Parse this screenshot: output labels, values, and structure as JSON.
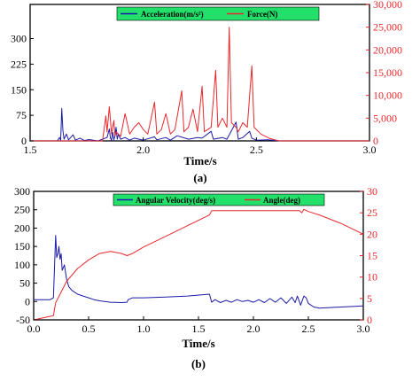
{
  "chart_data": [
    {
      "type": "line",
      "caption": "(a)",
      "xlabel": "Time/s",
      "xlim": [
        1.5,
        3.0
      ],
      "xticks": [
        "1.5",
        "2.0",
        "2.5",
        "3.0"
      ],
      "ylim_left": [
        0,
        400
      ],
      "yticks_left": [
        "0",
        "75",
        "150",
        "225",
        "300"
      ],
      "ylim_right": [
        0,
        30000
      ],
      "yticks_right": [
        "0",
        "5,000",
        "10,000",
        "15,000",
        "20,000",
        "25,000",
        "30,000"
      ],
      "legend_position": "top-center",
      "series": [
        {
          "name": "Acceleration(m/s²)",
          "axis": "left",
          "color": "#1a1aa8",
          "points": [
            [
              1.5,
              0
            ],
            [
              1.62,
              0
            ],
            [
              1.63,
              10
            ],
            [
              1.635,
              2
            ],
            [
              1.64,
              95
            ],
            [
              1.645,
              30
            ],
            [
              1.65,
              5
            ],
            [
              1.66,
              20
            ],
            [
              1.67,
              3
            ],
            [
              1.69,
              18
            ],
            [
              1.7,
              2
            ],
            [
              1.72,
              8
            ],
            [
              1.74,
              1
            ],
            [
              1.76,
              4
            ],
            [
              1.8,
              0
            ],
            [
              1.82,
              5
            ],
            [
              1.84,
              10
            ],
            [
              1.85,
              35
            ],
            [
              1.855,
              8
            ],
            [
              1.86,
              2
            ],
            [
              1.865,
              25
            ],
            [
              1.87,
              3
            ],
            [
              1.875,
              15
            ],
            [
              1.88,
              40
            ],
            [
              1.885,
              5
            ],
            [
              1.89,
              20
            ],
            [
              1.9,
              5
            ],
            [
              1.92,
              10
            ],
            [
              1.94,
              2
            ],
            [
              1.96,
              8
            ],
            [
              2.0,
              2
            ],
            [
              2.05,
              12
            ],
            [
              2.06,
              3
            ],
            [
              2.1,
              10
            ],
            [
              2.12,
              2
            ],
            [
              2.15,
              15
            ],
            [
              2.2,
              5
            ],
            [
              2.24,
              10
            ],
            [
              2.26,
              8
            ],
            [
              2.3,
              28
            ],
            [
              2.31,
              5
            ],
            [
              2.35,
              10
            ],
            [
              2.37,
              5
            ],
            [
              2.41,
              55
            ],
            [
              2.42,
              5
            ],
            [
              2.44,
              10
            ],
            [
              2.47,
              28
            ],
            [
              2.48,
              8
            ],
            [
              2.5,
              2
            ],
            [
              2.55,
              3
            ],
            [
              2.6,
              0
            ],
            [
              3.0,
              0
            ]
          ]
        },
        {
          "name": "Force(N)",
          "axis": "right",
          "color": "#e8282c",
          "points": [
            [
              1.5,
              0
            ],
            [
              1.82,
              0
            ],
            [
              1.835,
              5500
            ],
            [
              1.84,
              2000
            ],
            [
              1.85,
              7500
            ],
            [
              1.86,
              1500
            ],
            [
              1.87,
              4500
            ],
            [
              1.875,
              1000
            ],
            [
              1.88,
              2000
            ],
            [
              1.9,
              1000
            ],
            [
              1.92,
              6000
            ],
            [
              1.94,
              1500
            ],
            [
              1.96,
              3000
            ],
            [
              1.98,
              4000
            ],
            [
              2.0,
              2500
            ],
            [
              2.02,
              1500
            ],
            [
              2.05,
              8500
            ],
            [
              2.06,
              1500
            ],
            [
              2.08,
              2500
            ],
            [
              2.1,
              6000
            ],
            [
              2.12,
              1500
            ],
            [
              2.14,
              2500
            ],
            [
              2.17,
              11000
            ],
            [
              2.18,
              2000
            ],
            [
              2.2,
              3000
            ],
            [
              2.22,
              7000
            ],
            [
              2.24,
              2000
            ],
            [
              2.26,
              12000
            ],
            [
              2.27,
              2000
            ],
            [
              2.3,
              3000
            ],
            [
              2.32,
              15500
            ],
            [
              2.33,
              3000
            ],
            [
              2.35,
              5000
            ],
            [
              2.37,
              3000
            ],
            [
              2.38,
              25000
            ],
            [
              2.39,
              4000
            ],
            [
              2.41,
              3000
            ],
            [
              2.42,
              2000
            ],
            [
              2.44,
              4000
            ],
            [
              2.46,
              3000
            ],
            [
              2.48,
              16500
            ],
            [
              2.49,
              3000
            ],
            [
              2.52,
              1500
            ],
            [
              2.56,
              500
            ],
            [
              2.6,
              0
            ],
            [
              3.0,
              0
            ]
          ]
        }
      ]
    },
    {
      "type": "line",
      "caption": "(b)",
      "xlabel": "Time/s",
      "xlim": [
        0.0,
        3.0
      ],
      "xticks": [
        "0.0",
        "0.5",
        "1.0",
        "1.5",
        "2.0",
        "2.5",
        "3.0"
      ],
      "ylim_left": [
        -50,
        300
      ],
      "yticks_left": [
        "-50",
        "0",
        "50",
        "100",
        "150",
        "200",
        "250",
        "300"
      ],
      "ylim_right": [
        0,
        30
      ],
      "yticks_right": [
        "0",
        "5",
        "10",
        "15",
        "20",
        "25",
        "30"
      ],
      "legend_position": "top-center",
      "series": [
        {
          "name": "Angular Velocity(deg/s)",
          "axis": "left",
          "color": "#1a1aa8",
          "points": [
            [
              0.0,
              5
            ],
            [
              0.15,
              5
            ],
            [
              0.18,
              10
            ],
            [
              0.2,
              180
            ],
            [
              0.21,
              120
            ],
            [
              0.22,
              130
            ],
            [
              0.23,
              150
            ],
            [
              0.24,
              115
            ],
            [
              0.25,
              130
            ],
            [
              0.26,
              85
            ],
            [
              0.28,
              100
            ],
            [
              0.3,
              60
            ],
            [
              0.32,
              40
            ],
            [
              0.35,
              30
            ],
            [
              0.4,
              20
            ],
            [
              0.45,
              15
            ],
            [
              0.5,
              10
            ],
            [
              0.55,
              5
            ],
            [
              0.6,
              2
            ],
            [
              0.7,
              -2
            ],
            [
              0.8,
              -3
            ],
            [
              0.85,
              -2
            ],
            [
              0.86,
              5
            ],
            [
              0.9,
              10
            ],
            [
              1.0,
              10
            ],
            [
              1.2,
              12
            ],
            [
              1.4,
              15
            ],
            [
              1.6,
              20
            ],
            [
              1.62,
              -2
            ],
            [
              1.65,
              5
            ],
            [
              1.7,
              -3
            ],
            [
              1.75,
              3
            ],
            [
              1.8,
              -2
            ],
            [
              1.85,
              5
            ],
            [
              1.9,
              0
            ],
            [
              1.95,
              3
            ],
            [
              2.0,
              -2
            ],
            [
              2.05,
              5
            ],
            [
              2.1,
              -3
            ],
            [
              2.15,
              8
            ],
            [
              2.2,
              -2
            ],
            [
              2.25,
              10
            ],
            [
              2.3,
              -5
            ],
            [
              2.35,
              12
            ],
            [
              2.38,
              -3
            ],
            [
              2.4,
              15
            ],
            [
              2.43,
              -10
            ],
            [
              2.46,
              15
            ],
            [
              2.48,
              10
            ],
            [
              2.5,
              -5
            ],
            [
              2.55,
              -15
            ],
            [
              2.6,
              -18
            ],
            [
              2.8,
              -15
            ],
            [
              3.0,
              -12
            ]
          ]
        },
        {
          "name": "Angle(deg)",
          "axis": "right",
          "color": "#e8282c",
          "points": [
            [
              0.0,
              0
            ],
            [
              0.18,
              1
            ],
            [
              0.2,
              4
            ],
            [
              0.3,
              9
            ],
            [
              0.4,
              12
            ],
            [
              0.5,
              14
            ],
            [
              0.6,
              15.5
            ],
            [
              0.7,
              16
            ],
            [
              0.8,
              15.5
            ],
            [
              0.85,
              15
            ],
            [
              0.9,
              15.5
            ],
            [
              1.0,
              17
            ],
            [
              1.2,
              19.5
            ],
            [
              1.4,
              22
            ],
            [
              1.6,
              24.5
            ],
            [
              1.62,
              25.5
            ],
            [
              2.0,
              25.5
            ],
            [
              2.42,
              25.5
            ],
            [
              2.44,
              25
            ],
            [
              2.46,
              25.8
            ],
            [
              2.5,
              25.3
            ],
            [
              2.6,
              24.5
            ],
            [
              2.8,
              22.5
            ],
            [
              3.0,
              20
            ]
          ]
        }
      ]
    }
  ]
}
